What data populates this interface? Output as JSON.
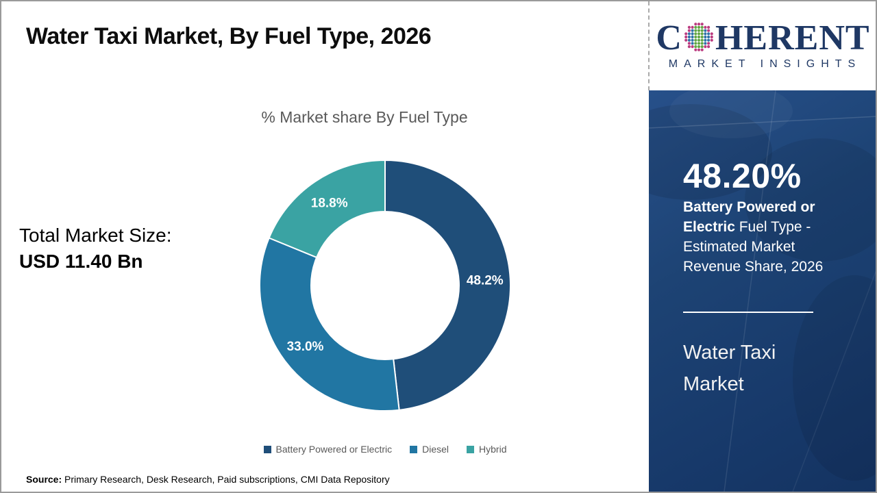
{
  "header": {
    "title": "Water Taxi Market, By Fuel Type, 2026"
  },
  "logo": {
    "prefix": "C",
    "suffix": "HERENT",
    "subtitle": "MARKET INSIGHTS",
    "text_color": "#1F3864",
    "globe_colors": {
      "green": "#62A744",
      "blue": "#2F72A8",
      "magenta": "#BB3C80"
    }
  },
  "left_panel": {
    "total_label": "Total Market Size:",
    "total_value": "USD 11.40 Bn"
  },
  "chart_data": {
    "type": "pie",
    "donut": true,
    "title": "% Market share By Fuel Type",
    "categories": [
      "Battery Powered or Electric",
      "Diesel",
      "Hybrid"
    ],
    "values": [
      48.2,
      33.0,
      18.8
    ],
    "labels": [
      "48.2%",
      "33.0%",
      "18.8%"
    ],
    "colors": [
      "#1F4E79",
      "#2176A3",
      "#3AA3A3"
    ],
    "start_angle_deg": 0,
    "direction": "clockwise",
    "legend_position": "bottom",
    "slice_border_color": "#ffffff"
  },
  "sidebar": {
    "stat_value": "48.20%",
    "stat_bold": "Battery Powered or Electric",
    "stat_rest": " Fuel Type - Estimated Market Revenue Share, 2026",
    "name_line1": "Water Taxi",
    "name_line2": "Market",
    "bg_color": "#1C4070"
  },
  "footer": {
    "source_label": "Source:",
    "source_text": " Primary Research, Desk Research, Paid subscriptions, CMI Data Repository"
  }
}
